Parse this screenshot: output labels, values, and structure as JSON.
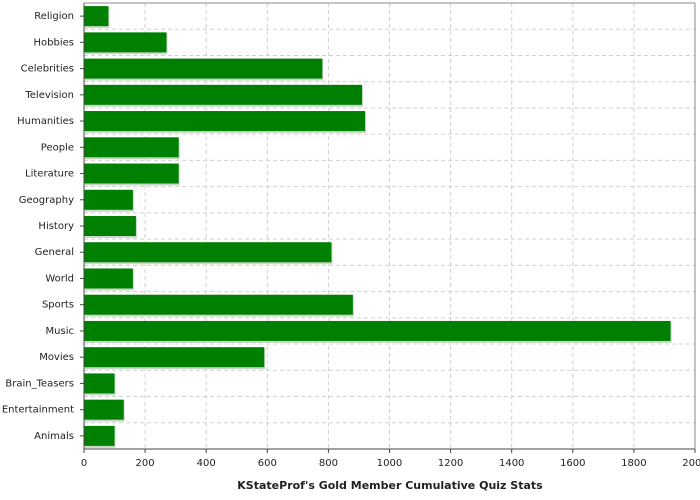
{
  "chart_data": {
    "type": "bar",
    "orientation": "horizontal",
    "x_label": "KStateProf's Gold Member Cumulative Quiz Stats",
    "categories": [
      "Religion",
      "Hobbies",
      "Celebrities",
      "Television",
      "Humanities",
      "People",
      "Literature",
      "Geography",
      "History",
      "General",
      "World",
      "Sports",
      "Music",
      "Movies",
      "Brain_Teasers",
      "Entertainment",
      "Animals"
    ],
    "values": [
      80,
      270,
      780,
      910,
      920,
      310,
      310,
      160,
      170,
      810,
      160,
      880,
      1920,
      590,
      100,
      130,
      100
    ],
    "color": "#008000",
    "xlim": [
      0,
      2000
    ],
    "xticks": [
      0,
      200,
      400,
      600,
      800,
      1000,
      1200,
      1400,
      1600,
      1800,
      2000
    ],
    "grid": true
  }
}
